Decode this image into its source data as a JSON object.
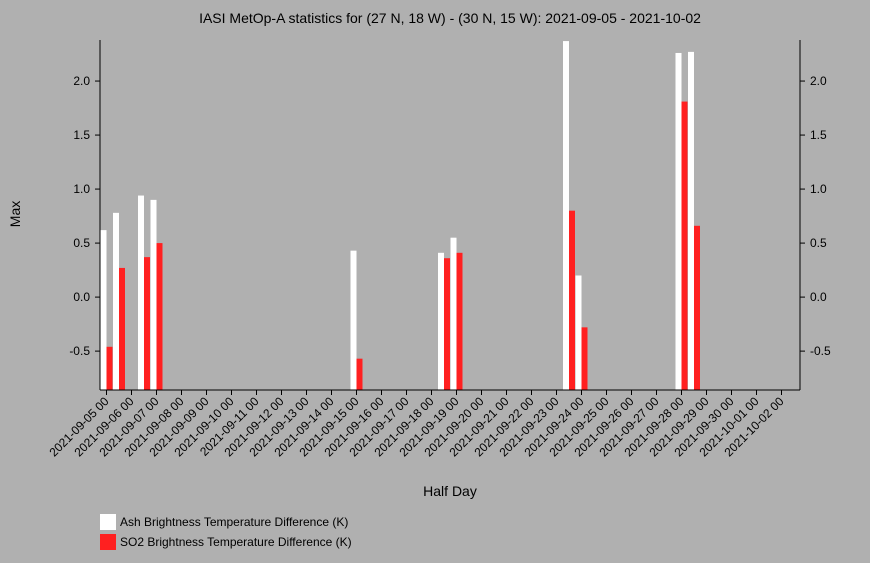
{
  "chart_data": {
    "type": "bar",
    "title": "IASI MetOp-A statistics for (27 N, 18 W) - (30 N, 15 W): 2021-09-05 - 2021-10-02",
    "xlabel": "Half Day",
    "ylabel": "Max",
    "ylim": [
      -0.86,
      2.38
    ],
    "yticks": [
      -0.5,
      0.0,
      0.5,
      1.0,
      1.5,
      2.0
    ],
    "ytick_labels": [
      "-0.5",
      "0.0",
      "0.5",
      "1.0",
      "1.5",
      "2.0"
    ],
    "x_tick_labels": [
      "2021-09-05 00",
      "2021-09-06 00",
      "2021-09-07 00",
      "2021-09-08 00",
      "2021-09-09 00",
      "2021-09-10 00",
      "2021-09-11 00",
      "2021-09-12 00",
      "2021-09-13 00",
      "2021-09-14 00",
      "2021-09-15 00",
      "2021-09-16 00",
      "2021-09-17 00",
      "2021-09-18 00",
      "2021-09-19 00",
      "2021-09-20 00",
      "2021-09-21 00",
      "2021-09-22 00",
      "2021-09-23 00",
      "2021-09-24 00",
      "2021-09-25 00",
      "2021-09-26 00",
      "2021-09-27 00",
      "2021-09-28 00",
      "2021-09-29 00",
      "2021-09-30 00",
      "2021-10-01 00",
      "2021-10-02 00"
    ],
    "grid": false,
    "legend_position": "bottom-left",
    "series": [
      {
        "name": "Ash Brightness Temperature Difference (K)",
        "color": "#ffffff",
        "points": [
          {
            "x": "2021-09-05 00",
            "y": 0.62
          },
          {
            "x": "2021-09-05 12",
            "y": 0.78
          },
          {
            "x": "2021-09-06 12",
            "y": 0.94
          },
          {
            "x": "2021-09-07 00",
            "y": 0.9
          },
          {
            "x": "2021-09-15 00",
            "y": 0.43
          },
          {
            "x": "2021-09-18 12",
            "y": 0.41
          },
          {
            "x": "2021-09-19 00",
            "y": 0.55
          },
          {
            "x": "2021-09-23 12",
            "y": 2.37
          },
          {
            "x": "2021-09-24 00",
            "y": 0.2
          },
          {
            "x": "2021-09-28 00",
            "y": 2.26
          },
          {
            "x": "2021-09-28 12",
            "y": 2.27
          }
        ]
      },
      {
        "name": "SO2 Brightness Temperature Difference (K)",
        "color": "#ff2020",
        "points": [
          {
            "x": "2021-09-05 00",
            "y": -0.46
          },
          {
            "x": "2021-09-05 12",
            "y": 0.27
          },
          {
            "x": "2021-09-06 12",
            "y": 0.37
          },
          {
            "x": "2021-09-07 00",
            "y": 0.5
          },
          {
            "x": "2021-09-15 00",
            "y": -0.57
          },
          {
            "x": "2021-09-18 12",
            "y": 0.36
          },
          {
            "x": "2021-09-19 00",
            "y": 0.41
          },
          {
            "x": "2021-09-23 12",
            "y": 0.8
          },
          {
            "x": "2021-09-24 00",
            "y": -0.28
          },
          {
            "x": "2021-09-28 00",
            "y": 1.81
          },
          {
            "x": "2021-09-28 12",
            "y": 0.66
          }
        ]
      }
    ]
  }
}
